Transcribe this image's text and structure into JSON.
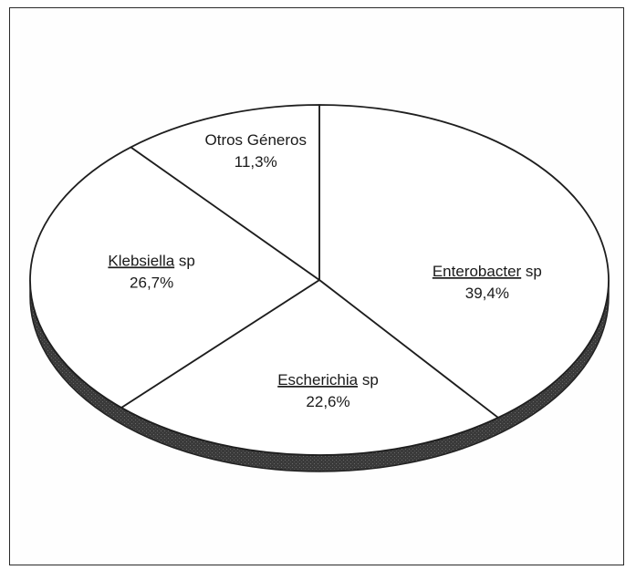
{
  "chart_data": {
    "type": "pie",
    "title": "",
    "three_d": true,
    "slices": [
      {
        "genus": "Enterobacter",
        "suffix": " sp",
        "label": "39,4%",
        "value": 39.4,
        "color": "#ffffff"
      },
      {
        "genus": "Escherichia",
        "suffix": " sp",
        "label": "22,6%",
        "value": 22.6,
        "color": "#ffffff"
      },
      {
        "genus": "Klebsiella",
        "suffix": " sp",
        "label": "26,7%",
        "value": 26.7,
        "color": "#ffffff"
      },
      {
        "genus": "Otros Géneros",
        "suffix": "",
        "label": "11,3%",
        "value": 11.3,
        "color": "#ffffff"
      }
    ],
    "legend": "none",
    "grid": false
  }
}
